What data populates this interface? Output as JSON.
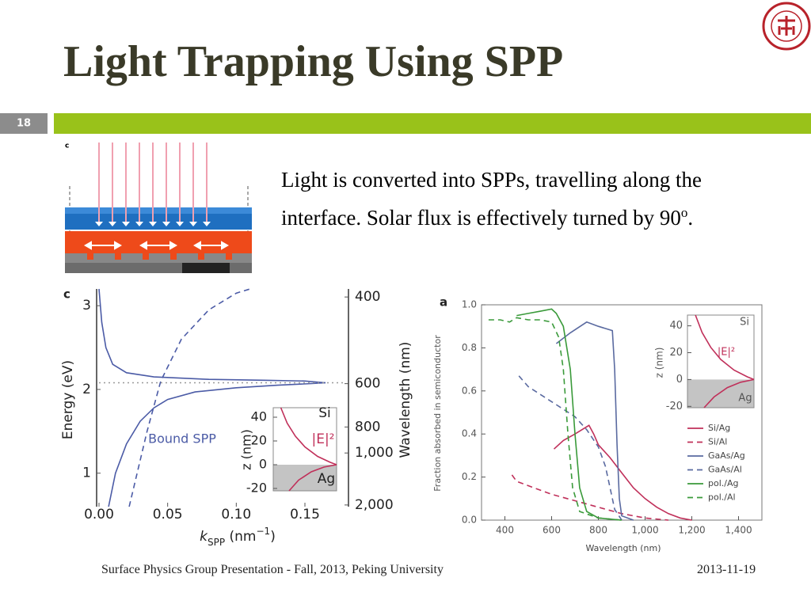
{
  "header": {
    "title": "Light Trapping Using SPP",
    "slide_number": "18"
  },
  "body": {
    "text": "Light is converted into SPPs, travelling along the interface. Solar flux is effectively turned by 90",
    "superscript": "o",
    "end": "."
  },
  "figure_label": "c",
  "footer": {
    "text": "Surface Physics Group Presentation - Fall, 2013, Peking University",
    "date": "2013-11-19"
  },
  "chart_data": [
    {
      "type": "line",
      "panel_label": "c",
      "xlabel": [
        "k",
        "SPP",
        " (nm",
        "−1",
        ")"
      ],
      "ylabel": "Energy (eV)",
      "y2label": "Wavelength (nm)",
      "xlim": [
        0,
        0.18
      ],
      "xticks": [
        {
          "value": 0,
          "label": "0.00"
        },
        0.05,
        {
          "value": 0.1,
          "label": "0.10"
        },
        0.15
      ],
      "ylim": [
        0.6,
        3.2
      ],
      "yticks": [
        1,
        2,
        3
      ],
      "y2lim": [
        2067,
        388
      ],
      "y2scale": "inverse",
      "y2ticks": [
        400,
        600,
        800,
        {
          "value": 1000,
          "label": "1,000"
        },
        {
          "value": 2000,
          "label": "2,000"
        }
      ],
      "annotations": [
        "Bound SPP"
      ],
      "series": [
        {
          "color": "#4b5ba6",
          "style": "solid",
          "x": [
            0.0,
            0.002,
            0.005,
            0.01,
            0.02,
            0.04,
            0.08,
            0.12,
            0.15,
            0.165
          ],
          "values": [
            3.2,
            2.8,
            2.5,
            2.3,
            2.2,
            2.15,
            2.12,
            2.11,
            2.1,
            2.08
          ]
        },
        {
          "color": "#4b5ba6",
          "style": "solid",
          "x": [
            0.007,
            0.012,
            0.02,
            0.03,
            0.04,
            0.05,
            0.07,
            0.1,
            0.13,
            0.155,
            0.165
          ],
          "values": [
            0.6,
            1.0,
            1.35,
            1.62,
            1.78,
            1.88,
            1.97,
            2.02,
            2.05,
            2.07,
            2.08
          ]
        },
        {
          "color": "#4b5ba6",
          "style": "dashed",
          "x": [
            0.022,
            0.035,
            0.045,
            0.06,
            0.08,
            0.1,
            0.11
          ],
          "values": [
            0.6,
            1.5,
            2.1,
            2.6,
            2.95,
            3.15,
            3.2
          ]
        },
        {
          "color": "#999999",
          "style": "dotted",
          "x": [
            0.0,
            0.18
          ],
          "values": [
            2.08,
            2.08
          ]
        }
      ]
    },
    {
      "type": "line",
      "ylabel": "z (nm)",
      "xlim": [
        0,
        1
      ],
      "ylim": [
        -22,
        48
      ],
      "yticks": [
        -20,
        0,
        20,
        40
      ],
      "annotations": [
        "Si",
        "|E|²",
        "Ag"
      ],
      "series": [
        {
          "color": "#c0305a",
          "style": "solid",
          "x": [
            0.12,
            0.22,
            0.35,
            0.5,
            0.7,
            0.9,
            1
          ],
          "values": [
            48,
            35,
            24,
            15,
            7,
            2,
            0
          ]
        },
        {
          "color": "#c0305a",
          "style": "solid",
          "x": [
            0.25,
            0.4,
            0.6,
            0.8,
            1
          ],
          "values": [
            -22,
            -13,
            -6,
            -2,
            0
          ]
        }
      ]
    },
    {
      "type": "line",
      "panel_label": "a",
      "xlabel": "Wavelength (nm)",
      "ylabel": "Fraction absorbed in semiconductor",
      "xlim": [
        300,
        1500
      ],
      "xticks": [
        400,
        600,
        800,
        {
          "value": 1000,
          "label": "1,000"
        },
        {
          "value": 1200,
          "label": "1,200"
        },
        {
          "value": 1400,
          "label": "1,400"
        }
      ],
      "ylim": [
        0,
        1.0
      ],
      "yticks": [
        {
          "value": 0,
          "label": "0.0"
        },
        0.2,
        0.4,
        0.6,
        0.8,
        {
          "value": 1,
          "label": "1.0"
        }
      ],
      "legend": "lower right",
      "series": [
        {
          "name": "Si/Ag",
          "color": "#c0305a",
          "style": "solid",
          "x": [
            610,
            650,
            700,
            760,
            780,
            800,
            850,
            900,
            950,
            1000,
            1050,
            1100,
            1150,
            1200
          ],
          "values": [
            0.33,
            0.37,
            0.4,
            0.44,
            0.4,
            0.35,
            0.29,
            0.22,
            0.15,
            0.1,
            0.06,
            0.03,
            0.01,
            0.0
          ]
        },
        {
          "name": "Si/Al",
          "color": "#c0305a",
          "style": "dashed",
          "x": [
            430,
            450,
            500,
            600,
            700,
            800,
            900,
            1000,
            1100
          ],
          "values": [
            0.21,
            0.18,
            0.16,
            0.12,
            0.09,
            0.06,
            0.03,
            0.01,
            0.0
          ]
        },
        {
          "name": "GaAs/Ag",
          "color": "#5a6aa0",
          "style": "solid",
          "x": [
            620,
            680,
            750,
            800,
            860,
            870,
            880,
            890,
            900,
            950
          ],
          "values": [
            0.82,
            0.87,
            0.92,
            0.9,
            0.88,
            0.7,
            0.35,
            0.1,
            0.02,
            0.0
          ]
        },
        {
          "name": "GaAs/Al",
          "color": "#5a6aa0",
          "style": "dashed",
          "x": [
            460,
            500,
            600,
            700,
            750,
            800,
            830,
            850,
            870,
            900
          ],
          "values": [
            0.67,
            0.62,
            0.55,
            0.48,
            0.42,
            0.34,
            0.25,
            0.15,
            0.05,
            0.0
          ]
        },
        {
          "name": "pol./Ag",
          "color": "#3a9a3a",
          "style": "solid",
          "x": [
            450,
            500,
            550,
            600,
            620,
            650,
            680,
            700,
            720,
            750,
            800,
            900
          ],
          "values": [
            0.95,
            0.96,
            0.97,
            0.98,
            0.96,
            0.9,
            0.7,
            0.4,
            0.15,
            0.04,
            0.01,
            0.0
          ]
        },
        {
          "name": "pol./Al",
          "color": "#3a9a3a",
          "style": "dashed",
          "x": [
            330,
            380,
            420,
            450,
            500,
            550,
            600,
            630,
            650,
            670,
            690,
            720,
            800,
            900
          ],
          "values": [
            0.93,
            0.93,
            0.92,
            0.94,
            0.93,
            0.93,
            0.92,
            0.85,
            0.7,
            0.4,
            0.15,
            0.04,
            0.01,
            0.0
          ]
        }
      ]
    },
    {
      "type": "line",
      "ylabel": "z (nm)",
      "xlim": [
        0,
        1
      ],
      "ylim": [
        -21,
        48
      ],
      "yticks": [
        -20,
        0,
        20,
        40
      ],
      "annotations": [
        "Si",
        "|E|²",
        "Ag"
      ],
      "series": [
        {
          "color": "#c0305a",
          "style": "solid",
          "x": [
            0.12,
            0.22,
            0.35,
            0.5,
            0.7,
            0.9,
            1
          ],
          "values": [
            48,
            35,
            24,
            15,
            7,
            2,
            0
          ]
        },
        {
          "color": "#c0305a",
          "style": "solid",
          "x": [
            0.25,
            0.4,
            0.6,
            0.8,
            1
          ],
          "values": [
            -21,
            -13,
            -6,
            -2,
            0
          ]
        }
      ]
    }
  ]
}
